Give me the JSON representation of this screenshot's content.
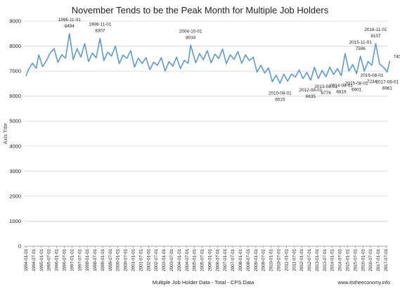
{
  "chart_data": {
    "type": "line",
    "title": "November Tends to be the Peak Month for Multiple Job Holders",
    "xlabel": "Multiple Job Holder Data - Total - CPS Data",
    "ylabel": "Axis Title",
    "source": "www.itstheeconomy.info",
    "ylim": [
      0,
      9000
    ],
    "yticks": [
      0,
      1000,
      2000,
      3000,
      4000,
      5000,
      6000,
      7000,
      8000,
      9000
    ],
    "xlim": [
      "1994-01-01",
      "2017-07-01"
    ],
    "xticks": [
      "1994-01-01",
      "1994-07-01",
      "1995-01-01",
      "1995-07-01",
      "1996-01-01",
      "1996-07-01",
      "1997-01-01",
      "1997-07-01",
      "1998-01-01",
      "1998-07-01",
      "1999-01-01",
      "1999-07-01",
      "2000-01-01",
      "2000-07-01",
      "2001-01-01",
      "2001-07-01",
      "2002-01-01",
      "2002-07-01",
      "2003-01-01",
      "2003-07-01",
      "2004-01-01",
      "2004-07-01",
      "2005-01-01",
      "2005-07-01",
      "2006-01-01",
      "2006-07-01",
      "2007-01-01",
      "2007-07-01",
      "2008-01-01",
      "2008-07-01",
      "2009-01-01",
      "2009-07-01",
      "2010-01-01",
      "2010-07-01",
      "2011-01-01",
      "2011-07-01",
      "2012-01-01",
      "2012-07-01",
      "2013-01-01",
      "2013-07-01",
      "2014-01-01",
      "2014-07-01",
      "2015-01-01",
      "2015-07-01",
      "2016-01-01",
      "2016-07-01",
      "2017-01-01",
      "2017-07-01"
    ],
    "grid": true,
    "legend": "none",
    "line_color": "#5b9bd5",
    "series": [
      {
        "points": [
          [
            "1994-01-01",
            6810
          ],
          [
            "1994-03-01",
            7060
          ],
          [
            "1994-06-01",
            7320
          ],
          [
            "1994-09-01",
            7110
          ],
          [
            "1994-11-01",
            7650
          ],
          [
            "1995-02-01",
            7180
          ],
          [
            "1995-05-01",
            7420
          ],
          [
            "1995-08-01",
            7730
          ],
          [
            "1995-11-01",
            7900
          ],
          [
            "1996-02-01",
            7350
          ],
          [
            "1996-05-01",
            7650
          ],
          [
            "1996-08-01",
            7520
          ],
          [
            "1996-11-01",
            8494
          ],
          [
            "1997-02-01",
            7460
          ],
          [
            "1997-05-01",
            7900
          ],
          [
            "1997-08-01",
            7560
          ],
          [
            "1997-11-01",
            8100
          ],
          [
            "1998-02-01",
            7380
          ],
          [
            "1998-05-01",
            7720
          ],
          [
            "1998-08-01",
            7530
          ],
          [
            "1998-11-01",
            8307
          ],
          [
            "1999-02-01",
            7420
          ],
          [
            "1999-05-01",
            7760
          ],
          [
            "1999-08-01",
            7600
          ],
          [
            "1999-11-01",
            8000
          ],
          [
            "2000-02-01",
            7300
          ],
          [
            "2000-05-01",
            7640
          ],
          [
            "2000-08-01",
            7510
          ],
          [
            "2000-11-01",
            7820
          ],
          [
            "2001-02-01",
            7160
          ],
          [
            "2001-05-01",
            7520
          ],
          [
            "2001-08-01",
            7310
          ],
          [
            "2001-11-01",
            7540
          ],
          [
            "2002-02-01",
            7060
          ],
          [
            "2002-05-01",
            7360
          ],
          [
            "2002-08-01",
            7230
          ],
          [
            "2002-11-01",
            7540
          ],
          [
            "2003-02-01",
            7000
          ],
          [
            "2003-05-01",
            7380
          ],
          [
            "2003-08-01",
            7200
          ],
          [
            "2003-11-01",
            7560
          ],
          [
            "2004-02-01",
            7100
          ],
          [
            "2004-05-01",
            7430
          ],
          [
            "2004-08-01",
            7310
          ],
          [
            "2004-10-01",
            8034
          ],
          [
            "2005-02-01",
            7330
          ],
          [
            "2005-05-01",
            7700
          ],
          [
            "2005-08-01",
            7450
          ],
          [
            "2005-11-01",
            7820
          ],
          [
            "2006-02-01",
            7330
          ],
          [
            "2006-05-01",
            7680
          ],
          [
            "2006-08-01",
            7500
          ],
          [
            "2006-11-01",
            7880
          ],
          [
            "2007-02-01",
            7300
          ],
          [
            "2007-05-01",
            7650
          ],
          [
            "2007-08-01",
            7470
          ],
          [
            "2007-11-01",
            7780
          ],
          [
            "2008-02-01",
            7310
          ],
          [
            "2008-05-01",
            7650
          ],
          [
            "2008-08-01",
            7420
          ],
          [
            "2008-11-01",
            7560
          ],
          [
            "2009-02-01",
            6960
          ],
          [
            "2009-05-01",
            7240
          ],
          [
            "2009-08-01",
            6920
          ],
          [
            "2009-11-01",
            7130
          ],
          [
            "2010-02-01",
            6580
          ],
          [
            "2010-05-01",
            6840
          ],
          [
            "2010-08-01",
            6515
          ],
          [
            "2010-11-01",
            6880
          ],
          [
            "2011-02-01",
            6600
          ],
          [
            "2011-05-01",
            6880
          ],
          [
            "2011-08-01",
            6760
          ],
          [
            "2011-11-01",
            7050
          ],
          [
            "2012-02-01",
            6700
          ],
          [
            "2012-05-01",
            6950
          ],
          [
            "2012-08-01",
            6635
          ],
          [
            "2012-11-01",
            7150
          ],
          [
            "2013-02-01",
            6700
          ],
          [
            "2013-05-01",
            7030
          ],
          [
            "2013-08-01",
            6776
          ],
          [
            "2013-11-01",
            7160
          ],
          [
            "2014-02-01",
            6860
          ],
          [
            "2014-05-01",
            7100
          ],
          [
            "2014-08-01",
            6819
          ],
          [
            "2014-11-01",
            7700
          ],
          [
            "2015-02-01",
            7000
          ],
          [
            "2015-05-01",
            7260
          ],
          [
            "2015-08-01",
            6901
          ],
          [
            "2015-11-01",
            7596
          ],
          [
            "2016-02-01",
            7000
          ],
          [
            "2016-05-01",
            7380
          ],
          [
            "2016-08-01",
            7234
          ],
          [
            "2016-11-01",
            8107
          ],
          [
            "2017-02-01",
            7280
          ],
          [
            "2017-05-01",
            7160
          ],
          [
            "2017-08-01",
            6961
          ],
          [
            "2017-10-01",
            7409
          ]
        ]
      }
    ],
    "annotations": [
      {
        "date": "1996-11-01",
        "value": "8494",
        "label_date": "1996-11-01",
        "position": "above"
      },
      {
        "date": "1998-11-01",
        "value": "8307",
        "label_date": "1998-11-01",
        "position": "above"
      },
      {
        "date": "2004-10-01",
        "value": "8034",
        "label_date": "2004-10-01",
        "position": "above"
      },
      {
        "date": "2010-08-01",
        "value": "6515",
        "label_date": "2010-08-01",
        "position": "below"
      },
      {
        "date": "2012-08-01",
        "value": "6635",
        "label_date": "2012-08-01",
        "position": "below"
      },
      {
        "date": "2013-08-01",
        "value": "6776",
        "label_date": "2013-08-01",
        "position": "below"
      },
      {
        "date": "2014-08-01",
        "value": "6819",
        "label_date": "2014-08-01",
        "position": "below"
      },
      {
        "date": "2015-11-01",
        "value": "7596",
        "label_date": "2015-11-01",
        "position": "above"
      },
      {
        "date": "2015-08-01",
        "value": "6901",
        "label_date": "2015-08-01",
        "position": "below"
      },
      {
        "date": "2016-11-01",
        "value": "8107",
        "label_date": "2016-11-01",
        "position": "above"
      },
      {
        "date": "2016-08-01",
        "value": "7234",
        "label_date": "2016-08-01",
        "position": "below"
      },
      {
        "date": "2017-08-01",
        "value": "6961",
        "label_date": "2017-08-01",
        "position": "below"
      },
      {
        "date": "2017-10-01",
        "value": "7409",
        "label_date": "",
        "position": "right"
      }
    ]
  }
}
